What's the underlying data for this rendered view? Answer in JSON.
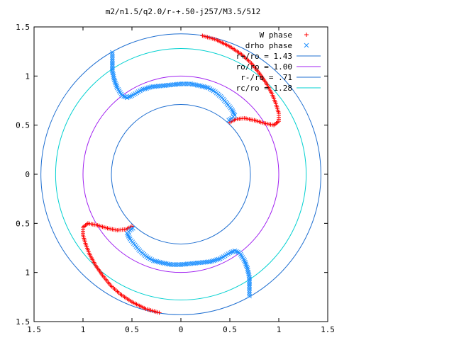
{
  "chart_data": {
    "type": "scatter",
    "title": "m2/n1.5/q2.0/r-+.50-j257/M3.5/512",
    "xlabel": "",
    "ylabel": "",
    "xlim": [
      -1.5,
      1.5
    ],
    "ylim": [
      -1.5,
      1.5
    ],
    "x_ticks": [
      -1.5,
      -1,
      -0.5,
      0,
      0.5,
      1,
      1.5
    ],
    "y_ticks": [
      -1.5,
      -1,
      -0.5,
      0,
      0.5,
      1,
      1.5
    ],
    "x_tick_labels": [
      "1.5",
      "1",
      "0.5",
      "0",
      "0.5",
      "1",
      "1.5"
    ],
    "y_tick_labels": [
      "1.5",
      "1",
      "0.5",
      "0",
      "0.5",
      "1",
      "1.5"
    ],
    "grid": false,
    "legend_position": "top-right",
    "series": [
      {
        "name": "W phase",
        "marker": "plus",
        "color": "#ff0000",
        "points": [
          [
            0.22,
            1.41
          ],
          [
            0.36,
            1.37
          ],
          [
            0.5,
            1.3
          ],
          [
            0.62,
            1.22
          ],
          [
            0.72,
            1.13
          ],
          [
            0.8,
            1.03
          ],
          [
            0.87,
            0.93
          ],
          [
            0.93,
            0.82
          ],
          [
            0.97,
            0.72
          ],
          [
            1.0,
            0.62
          ],
          [
            1.0,
            0.54
          ],
          [
            0.95,
            0.5
          ],
          [
            0.85,
            0.52
          ],
          [
            0.75,
            0.55
          ],
          [
            0.65,
            0.57
          ],
          [
            0.56,
            0.56
          ],
          [
            0.5,
            0.53
          ],
          [
            -0.22,
            -1.41
          ],
          [
            -0.36,
            -1.37
          ],
          [
            -0.5,
            -1.3
          ],
          [
            -0.62,
            -1.22
          ],
          [
            -0.72,
            -1.13
          ],
          [
            -0.8,
            -1.03
          ],
          [
            -0.87,
            -0.93
          ],
          [
            -0.93,
            -0.82
          ],
          [
            -0.97,
            -0.72
          ],
          [
            -1.0,
            -0.62
          ],
          [
            -1.0,
            -0.54
          ],
          [
            -0.95,
            -0.5
          ],
          [
            -0.85,
            -0.52
          ],
          [
            -0.75,
            -0.55
          ],
          [
            -0.65,
            -0.57
          ],
          [
            -0.56,
            -0.56
          ],
          [
            -0.5,
            -0.53
          ]
        ]
      },
      {
        "name": "drho phase",
        "marker": "cross",
        "color": "#1e90ff",
        "points": [
          [
            -0.7,
            1.24
          ],
          [
            -0.7,
            1.15
          ],
          [
            -0.7,
            1.05
          ],
          [
            -0.68,
            0.96
          ],
          [
            -0.65,
            0.88
          ],
          [
            -0.6,
            0.8
          ],
          [
            -0.55,
            0.78
          ],
          [
            -0.5,
            0.8
          ],
          [
            -0.4,
            0.86
          ],
          [
            -0.3,
            0.89
          ],
          [
            -0.2,
            0.9
          ],
          [
            -0.1,
            0.91
          ],
          [
            0.0,
            0.92
          ],
          [
            0.1,
            0.92
          ],
          [
            0.2,
            0.9
          ],
          [
            0.28,
            0.88
          ],
          [
            0.35,
            0.84
          ],
          [
            0.42,
            0.78
          ],
          [
            0.47,
            0.72
          ],
          [
            0.52,
            0.66
          ],
          [
            0.55,
            0.6
          ],
          [
            0.52,
            0.57
          ],
          [
            0.49,
            0.55
          ],
          [
            0.7,
            -1.24
          ],
          [
            0.7,
            -1.15
          ],
          [
            0.7,
            -1.05
          ],
          [
            0.68,
            -0.96
          ],
          [
            0.65,
            -0.88
          ],
          [
            0.6,
            -0.8
          ],
          [
            0.55,
            -0.78
          ],
          [
            0.5,
            -0.8
          ],
          [
            0.4,
            -0.86
          ],
          [
            0.3,
            -0.89
          ],
          [
            0.2,
            -0.9
          ],
          [
            0.1,
            -0.91
          ],
          [
            0.0,
            -0.92
          ],
          [
            -0.1,
            -0.92
          ],
          [
            -0.2,
            -0.9
          ],
          [
            -0.28,
            -0.88
          ],
          [
            -0.35,
            -0.84
          ],
          [
            -0.42,
            -0.78
          ],
          [
            -0.47,
            -0.72
          ],
          [
            -0.52,
            -0.66
          ],
          [
            -0.55,
            -0.6
          ],
          [
            -0.52,
            -0.57
          ],
          [
            -0.49,
            -0.55
          ]
        ]
      }
    ],
    "circles": [
      {
        "name": "r+/ro = 1.43",
        "radius": 1.43,
        "color": "#1f6fd1"
      },
      {
        "name": "ro/ro = 1.00",
        "radius": 1.0,
        "color": "#a020f0"
      },
      {
        "name": "r-/ro = .71",
        "radius": 0.71,
        "color": "#1f6fd1"
      },
      {
        "name": "rc/ro = 1.28",
        "radius": 1.28,
        "color": "#00d0d0"
      }
    ]
  }
}
